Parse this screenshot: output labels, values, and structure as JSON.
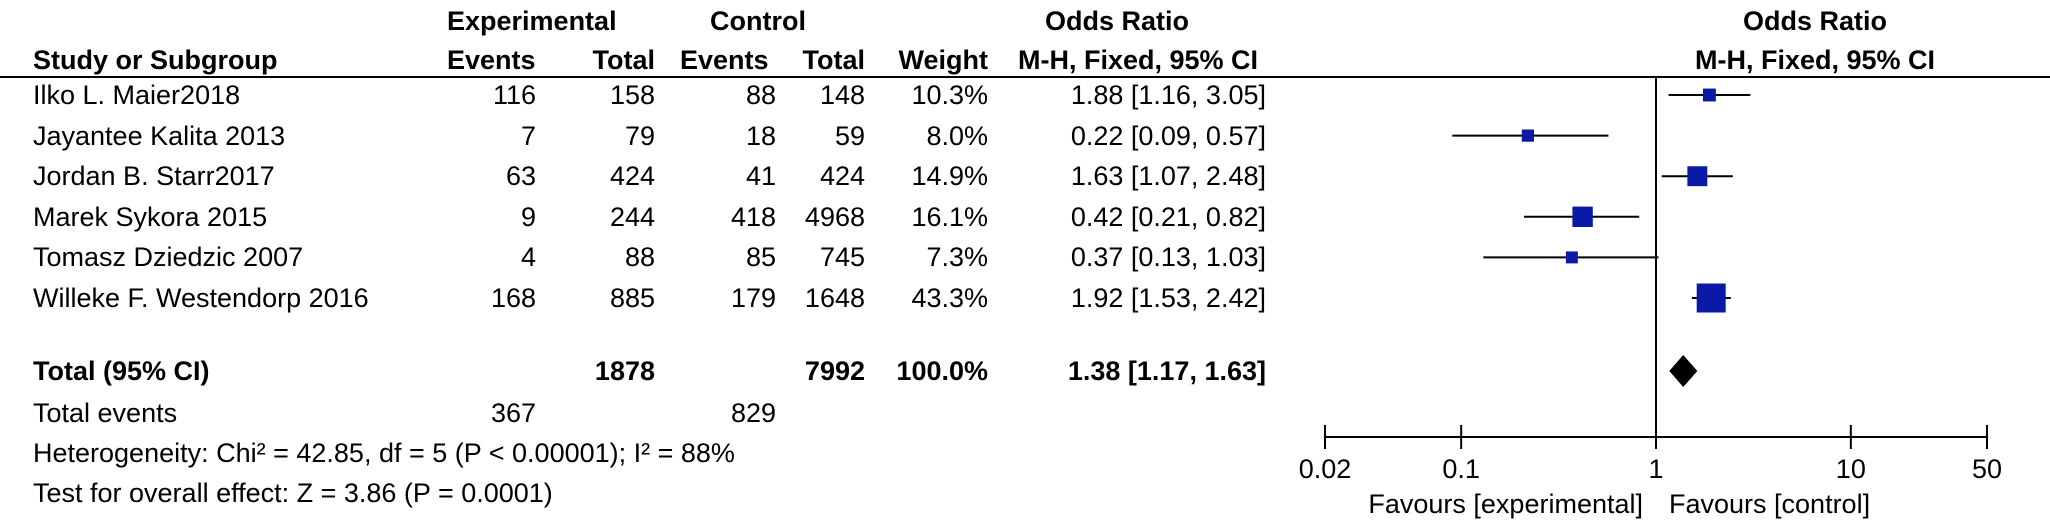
{
  "header": {
    "experimental": "Experimental",
    "control": "Control",
    "odds_ratio": "Odds Ratio",
    "study_or_subgroup": "Study or Subgroup",
    "events": "Events",
    "total": "Total",
    "weight": "Weight",
    "method": "M-H, Fixed, 95% CI",
    "plot_title": "Odds Ratio",
    "plot_method": "M-H, Fixed, 95% CI"
  },
  "studies": [
    {
      "name": "Ilko L. Maier2018",
      "exp_events": "116",
      "exp_total": "158",
      "ctl_events": "88",
      "ctl_total": "148",
      "weight": "10.3%",
      "or_text": "1.88 [1.16, 3.05]"
    },
    {
      "name": "Jayantee Kalita 2013",
      "exp_events": "7",
      "exp_total": "79",
      "ctl_events": "18",
      "ctl_total": "59",
      "weight": "8.0%",
      "or_text": "0.22 [0.09, 0.57]"
    },
    {
      "name": "Jordan B. Starr2017",
      "exp_events": "63",
      "exp_total": "424",
      "ctl_events": "41",
      "ctl_total": "424",
      "weight": "14.9%",
      "or_text": "1.63 [1.07, 2.48]"
    },
    {
      "name": "Marek Sykora 2015",
      "exp_events": "9",
      "exp_total": "244",
      "ctl_events": "418",
      "ctl_total": "4968",
      "weight": "16.1%",
      "or_text": "0.42 [0.21, 0.82]"
    },
    {
      "name": "Tomasz Dziedzic 2007",
      "exp_events": "4",
      "exp_total": "88",
      "ctl_events": "85",
      "ctl_total": "745",
      "weight": "7.3%",
      "or_text": "0.37 [0.13, 1.03]"
    },
    {
      "name": "Willeke F. Westendorp 2016",
      "exp_events": "168",
      "exp_total": "885",
      "ctl_events": "179",
      "ctl_total": "1648",
      "weight": "43.3%",
      "or_text": "1.92 [1.53, 2.42]"
    }
  ],
  "total": {
    "label": "Total (95% CI)",
    "exp_total": "1878",
    "ctl_total": "7992",
    "weight": "100.0%",
    "or_text": "1.38 [1.17, 1.63]"
  },
  "total_events": {
    "label": "Total events",
    "exp": "367",
    "ctl": "829"
  },
  "heterogeneity": "Heterogeneity: Chi² = 42.85, df = 5 (P < 0.00001); I² = 88%",
  "overall_effect": "Test for overall effect: Z = 3.86 (P = 0.0001)",
  "chart_data": {
    "type": "forest",
    "scale": "log",
    "xlim": [
      0.02,
      50
    ],
    "ticks": [
      0.02,
      0.1,
      1,
      10,
      50
    ],
    "tick_labels": [
      "0.02",
      "0.1",
      "1",
      "10",
      "50"
    ],
    "reference_line": 1,
    "studies": [
      {
        "or": 1.88,
        "lo": 1.16,
        "hi": 3.05,
        "weight": 10.3
      },
      {
        "or": 0.22,
        "lo": 0.09,
        "hi": 0.57,
        "weight": 8.0
      },
      {
        "or": 1.63,
        "lo": 1.07,
        "hi": 2.48,
        "weight": 14.9
      },
      {
        "or": 0.42,
        "lo": 0.21,
        "hi": 0.82,
        "weight": 16.1
      },
      {
        "or": 0.37,
        "lo": 0.13,
        "hi": 1.03,
        "weight": 7.3
      },
      {
        "or": 1.92,
        "lo": 1.53,
        "hi": 2.42,
        "weight": 43.3
      }
    ],
    "pooled": {
      "or": 1.38,
      "lo": 1.17,
      "hi": 1.63
    },
    "favours_left": "Favours [experimental]",
    "favours_right": "Favours [control]",
    "marker_color": "#0a1aa6"
  }
}
